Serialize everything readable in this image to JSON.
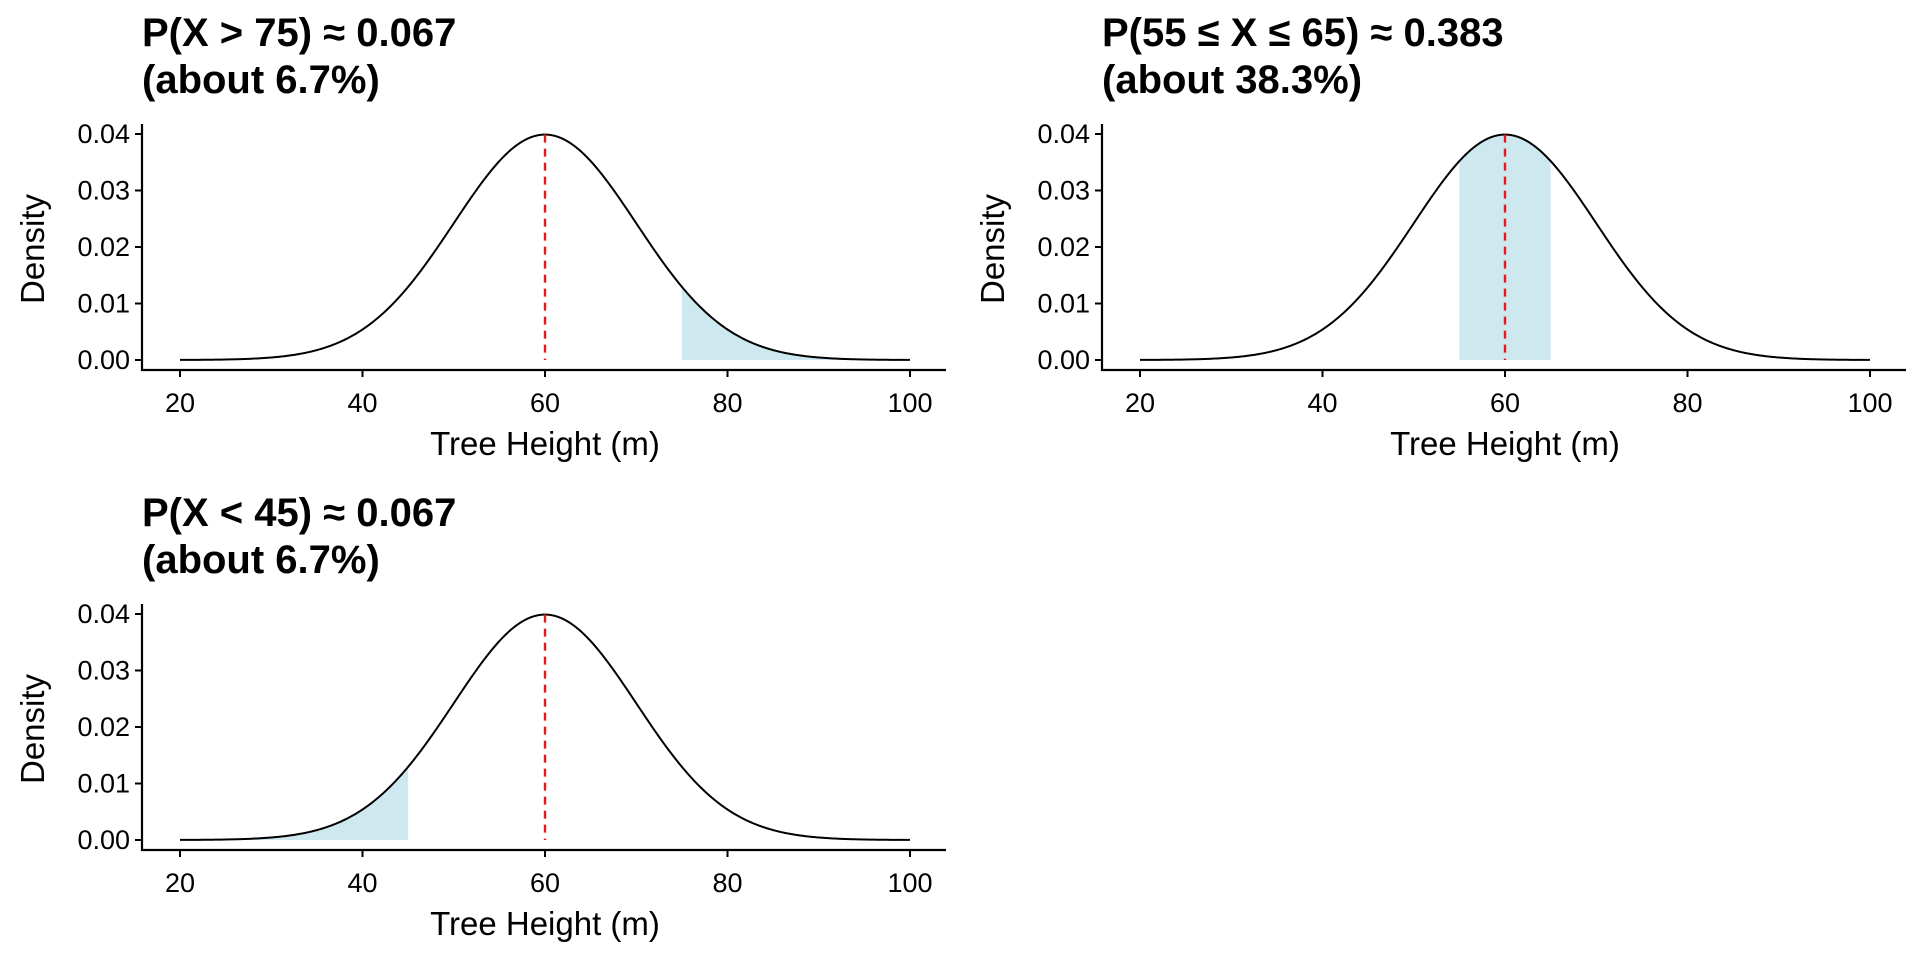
{
  "chart_data": [
    {
      "type": "area",
      "title_lines": [
        "P(X > 75) ≈ 0.067",
        "(about 6.7%)"
      ],
      "xlabel": "Tree Height (m)",
      "ylabel": "Density",
      "xlim": [
        20,
        100
      ],
      "ylim": [
        0,
        0.04
      ],
      "xticks": [
        "20",
        "40",
        "60",
        "80",
        "100"
      ],
      "yticks": [
        "0.00",
        "0.01",
        "0.02",
        "0.03",
        "0.04"
      ],
      "distribution": {
        "family": "normal",
        "mean": 60,
        "sd": 10
      },
      "shaded_range": [
        75,
        100
      ],
      "reference_line_x": 60,
      "colors": {
        "curve": "#000000",
        "shade": "#add8e6",
        "reference": "#e41a1c"
      }
    },
    {
      "type": "area",
      "title_lines": [
        "P(55 ≤ X ≤ 65) ≈ 0.383",
        "(about 38.3%)"
      ],
      "xlabel": "Tree Height (m)",
      "ylabel": "Density",
      "xlim": [
        20,
        100
      ],
      "ylim": [
        0,
        0.04
      ],
      "xticks": [
        "20",
        "40",
        "60",
        "80",
        "100"
      ],
      "yticks": [
        "0.00",
        "0.01",
        "0.02",
        "0.03",
        "0.04"
      ],
      "distribution": {
        "family": "normal",
        "mean": 60,
        "sd": 10
      },
      "shaded_range": [
        55,
        65
      ],
      "reference_line_x": 60,
      "colors": {
        "curve": "#000000",
        "shade": "#add8e6",
        "reference": "#e41a1c"
      }
    },
    {
      "type": "area",
      "title_lines": [
        "P(X < 45) ≈ 0.067",
        "(about 6.7%)"
      ],
      "xlabel": "Tree Height (m)",
      "ylabel": "Density",
      "xlim": [
        20,
        100
      ],
      "ylim": [
        0,
        0.04
      ],
      "xticks": [
        "20",
        "40",
        "60",
        "80",
        "100"
      ],
      "yticks": [
        "0.00",
        "0.01",
        "0.02",
        "0.03",
        "0.04"
      ],
      "distribution": {
        "family": "normal",
        "mean": 60,
        "sd": 10
      },
      "shaded_range": [
        20,
        45
      ],
      "reference_line_x": 60,
      "colors": {
        "curve": "#000000",
        "shade": "#add8e6",
        "reference": "#e41a1c"
      }
    }
  ]
}
